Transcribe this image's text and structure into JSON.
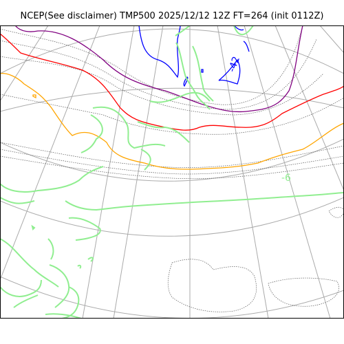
{
  "title": "NCEP(See disclaimer) TMP500 2025/12/12 12Z FT=264 (init 0112Z)",
  "contour_labels": {
    "cold": "-42",
    "warm_green": "-6"
  },
  "colors": {
    "frame": "#000000",
    "graticule": "#aaaaaa",
    "coast_and_isotherm_light": "#90ee90",
    "isotherm_purple": "#800080",
    "isotherm_red": "#ff0000",
    "isotherm_orange": "#ffa500",
    "isotherm_blue": "#0000ff",
    "isotherm_dotted": "#555555"
  }
}
